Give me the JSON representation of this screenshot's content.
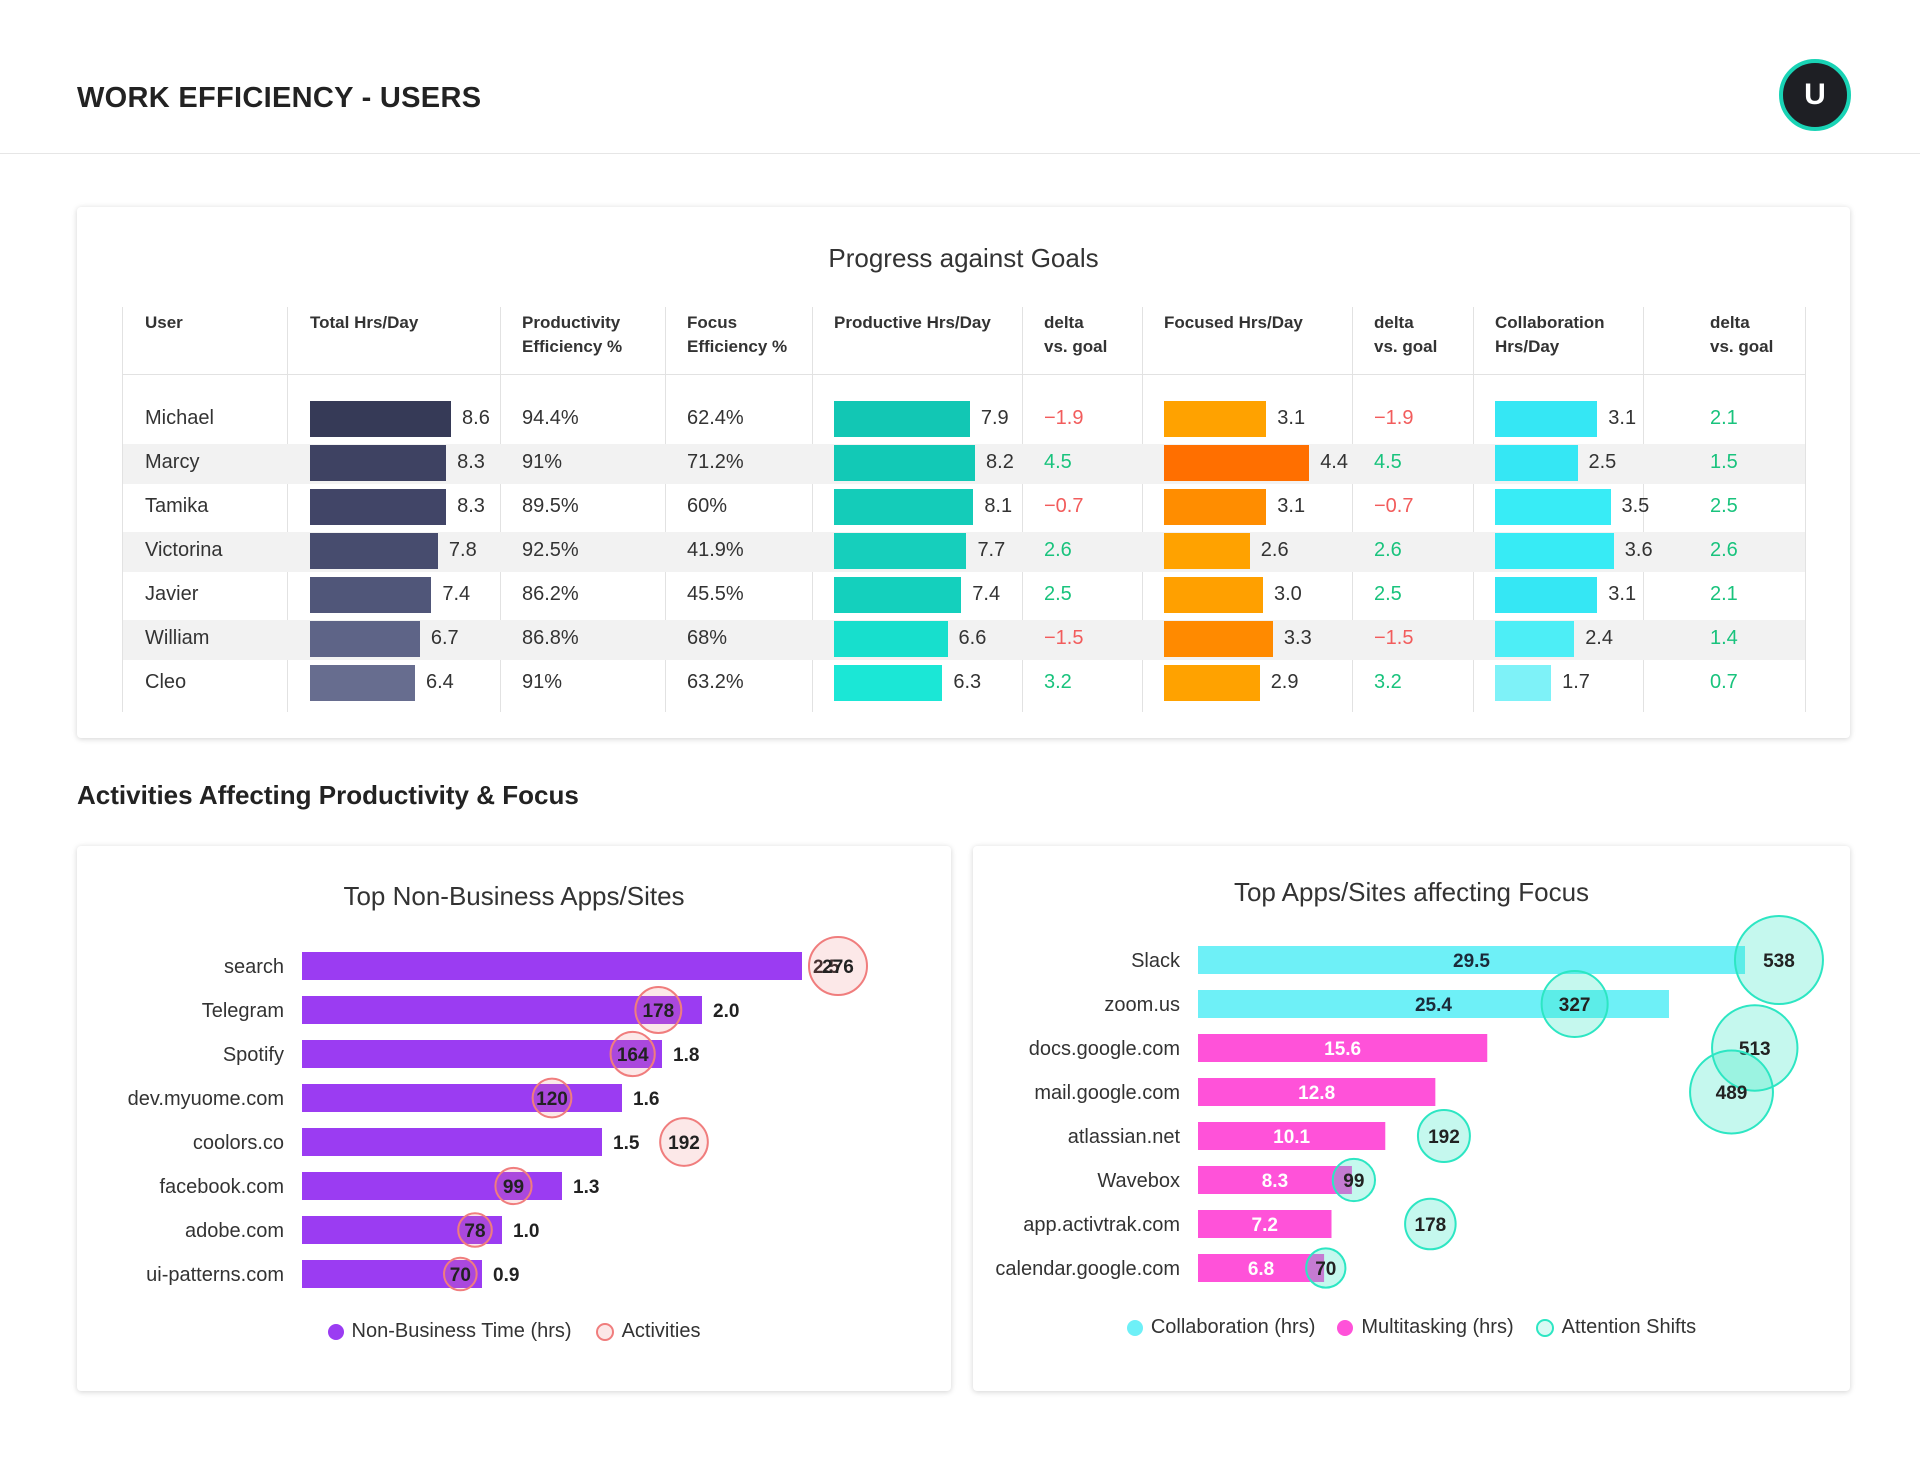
{
  "header": {
    "title": "WORK EFFICIENCY - USERS",
    "avatar_letter": "U"
  },
  "goals": {
    "title": "Progress against Goals",
    "columns": {
      "user": "User",
      "total": "Total Hrs/Day",
      "prod_eff_1": "Productivity",
      "prod_eff_2": "Efficiency %",
      "focus_eff_1": "Focus",
      "focus_eff_2": "Efficiency %",
      "productive": "Productive Hrs/Day",
      "delta1_1": "delta",
      "delta1_2": "vs. goal",
      "focused": "Focused Hrs/Day",
      "delta2_1": "delta",
      "delta2_2": "vs. goal",
      "collab_1": "Collaboration",
      "collab_2": "Hrs/Day",
      "delta3_1": "delta",
      "delta3_2": "vs. goal"
    },
    "rows": [
      {
        "user": "Michael",
        "total": "8.6",
        "prod_eff": "94.4%",
        "focus_eff": "62.4%",
        "productive": "7.9",
        "delta1": "−1.9",
        "focused": "3.1",
        "delta2": "−1.9",
        "collab": "3.1",
        "delta3": "2.1"
      },
      {
        "user": "Marcy",
        "total": "8.3",
        "prod_eff": "91%",
        "focus_eff": "71.2%",
        "productive": "8.2",
        "delta1": "4.5",
        "focused": "4.4",
        "delta2": "4.5",
        "collab": "2.5",
        "delta3": "1.5"
      },
      {
        "user": "Tamika",
        "total": "8.3",
        "prod_eff": "89.5%",
        "focus_eff": "60%",
        "productive": "8.1",
        "delta1": "−0.7",
        "focused": "3.1",
        "delta2": "−0.7",
        "collab": "3.5",
        "delta3": "2.5"
      },
      {
        "user": "Victorina",
        "total": "7.8",
        "prod_eff": "92.5%",
        "focus_eff": "41.9%",
        "productive": "7.7",
        "delta1": "2.6",
        "focused": "2.6",
        "delta2": "2.6",
        "collab": "3.6",
        "delta3": "2.6"
      },
      {
        "user": "Javier",
        "total": "7.4",
        "prod_eff": "86.2%",
        "focus_eff": "45.5%",
        "productive": "7.4",
        "delta1": "2.5",
        "focused": "3.0",
        "delta2": "2.5",
        "collab": "3.1",
        "delta3": "2.1"
      },
      {
        "user": "William",
        "total": "6.7",
        "prod_eff": "86.8%",
        "focus_eff": "68%",
        "productive": "6.6",
        "delta1": "−1.5",
        "focused": "3.3",
        "delta2": "−1.5",
        "collab": "2.4",
        "delta3": "1.4"
      },
      {
        "user": "Cleo",
        "total": "6.4",
        "prod_eff": "91%",
        "focus_eff": "63.2%",
        "productive": "6.3",
        "delta1": "3.2",
        "focused": "2.9",
        "delta2": "3.2",
        "collab": "1.7",
        "delta3": "0.7"
      }
    ],
    "colors": {
      "total": [
        "#363a57",
        "#3e4262",
        "#414567",
        "#474c6e",
        "#505679",
        "#5e6487",
        "#676d8f"
      ],
      "productive": [
        "#12c7b4",
        "#12c9b6",
        "#14ccb9",
        "#16cfbc",
        "#14d0bd",
        "#17dfcd",
        "#1be7d6"
      ],
      "focused": [
        "#ffa200",
        "#ff6f00",
        "#ff8d00",
        "#ffa200",
        "#ffa000",
        "#ff8a00",
        "#ffa200"
      ],
      "collab": [
        "#35e7f4",
        "#35e7f4",
        "#38ecf6",
        "#37ebf5",
        "#35e7f4",
        "#4deef6",
        "#7ef2f8"
      ],
      "negative": "#f25c5c",
      "positive": "#19c37d"
    }
  },
  "section_title": "Activities Affecting Productivity & Focus",
  "chart_data": [
    {
      "type": "bar",
      "title": "Top Non-Business Apps/Sites",
      "categories": [
        "search",
        "Telegram",
        "Spotify",
        "dev.myuome.com",
        "coolors.co",
        "facebook.com",
        "adobe.com",
        "ui-patterns.com"
      ],
      "series": [
        {
          "name": "Non-Business Time (hrs)",
          "values": [
            2.5,
            2.0,
            1.8,
            1.6,
            1.5,
            1.3,
            1.0,
            0.9
          ],
          "labels": [
            "2.5",
            "2.0",
            "1.8",
            "1.6",
            "1.5",
            "1.3",
            "1.0",
            "0.9"
          ],
          "color": "#9b3cf2"
        },
        {
          "name": "Activities",
          "values": [
            276,
            178,
            164,
            120,
            192,
            99,
            78,
            70
          ],
          "color": "#f07d7d"
        }
      ],
      "xlim": [
        0,
        2.55
      ],
      "activity_xlim": [
        0,
        300
      ]
    },
    {
      "type": "bar",
      "title": "Top Apps/Sites affecting Focus",
      "categories": [
        "Slack",
        "zoom.us",
        "docs.google.com",
        "mail.google.com",
        "atlassian.net",
        "Wavebox",
        "app.activtrak.com",
        "calendar.google.com"
      ],
      "series": [
        {
          "name": "Collaboration (hrs)",
          "values": [
            29.5,
            25.4,
            null,
            null,
            null,
            null,
            null,
            null
          ],
          "color": "#6ef0f7"
        },
        {
          "name": "Multitasking (hrs)",
          "values": [
            null,
            null,
            15.6,
            12.8,
            10.1,
            8.3,
            7.2,
            6.8
          ],
          "color": "#ff52d9"
        },
        {
          "name": "Attention Shifts",
          "values": [
            538,
            327,
            513,
            489,
            192,
            99,
            178,
            70
          ],
          "color": "#2de6c3"
        }
      ],
      "xlim": [
        0,
        29.5
      ],
      "shift_xlim": [
        0,
        600
      ]
    }
  ],
  "legends": {
    "left": [
      {
        "label": "Non-Business Time (hrs)",
        "color": "#9b3cf2",
        "hollow": false
      },
      {
        "label": "Activities",
        "color": "#f07d7d",
        "hollow": true
      }
    ],
    "right": [
      {
        "label": "Collaboration (hrs)",
        "color": "#6ef0f7",
        "hollow": false
      },
      {
        "label": "Multitasking (hrs)",
        "color": "#ff52d9",
        "hollow": false
      },
      {
        "label": "Attention Shifts",
        "color": "#2de6c3",
        "hollow": true
      }
    ]
  }
}
